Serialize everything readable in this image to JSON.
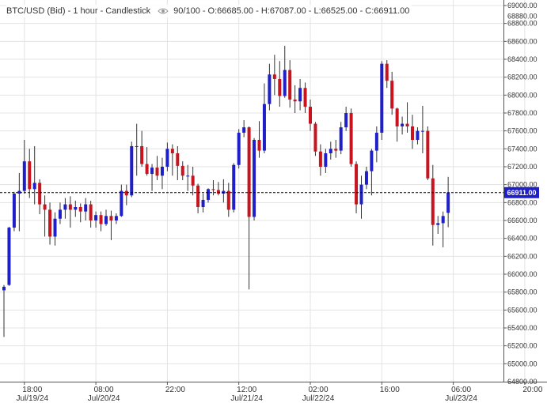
{
  "header": {
    "symbol_label": "BTC/USD (Bid) - 1 hour - Candlestick",
    "visible_icon": "eye-icon",
    "zoom": "90/100",
    "ohlc": "- O:66685.00 - H:67087.00 - L:66525.00 - C:66911.00"
  },
  "colors": {
    "up": "#1f1fc8",
    "down": "#c8141e",
    "grid": "#e3e3e3",
    "current_price_bg": "#1f1fc8"
  },
  "chart_data": {
    "type": "candlestick",
    "title": "BTC/USD (Bid) - 1 hour - Candlestick",
    "last_price": 66911.0,
    "last_price_label": "66911.00",
    "y_ticks": [
      65000,
      65200,
      65400,
      65600,
      65800,
      66000,
      66200,
      66400,
      66600,
      66800,
      67000,
      67200,
      67400,
      67600,
      67800,
      68000,
      68200,
      68400,
      68600,
      68800,
      69000
    ],
    "y_tick_labels": [
      "65000.00",
      "65200.00",
      "65400.00",
      "65600.00",
      "65800.00",
      "66000.00",
      "66200.00",
      "66400.00",
      "66600.00",
      "66800.00",
      "67000.00",
      "67200.00",
      "67400.00",
      "67600.00",
      "67800.00",
      "68000.00",
      "68200.00",
      "68400.00",
      "68600.00",
      "68800.00",
      "69000.00"
    ],
    "y_edge_labels": [
      "64800.00",
      "68880.00"
    ],
    "ylim": [
      64800,
      69000
    ],
    "x_tick_labels": [
      "18:00",
      "08:00",
      "22:00",
      "12:00",
      "02:00",
      "16:00",
      "06:00",
      "20:00"
    ],
    "x_tick_index": [
      4,
      18,
      32,
      46,
      60,
      74,
      88,
      102
    ],
    "x_date_labels": [
      {
        "label": "Jul/19/24",
        "index": 4
      },
      {
        "label": "Jul/20/24",
        "index": 18
      },
      {
        "label": "Jul/21/24",
        "index": 46
      },
      {
        "label": "Jul/22/24",
        "index": 60
      },
      {
        "label": "Jul/23/24",
        "index": 88
      }
    ],
    "candles": [
      {
        "o": 65820,
        "h": 65880,
        "l": 65300,
        "c": 65860
      },
      {
        "o": 65880,
        "h": 66530,
        "l": 65870,
        "c": 66520
      },
      {
        "o": 66520,
        "h": 66920,
        "l": 66480,
        "c": 66900
      },
      {
        "o": 66900,
        "h": 67130,
        "l": 66480,
        "c": 66930
      },
      {
        "o": 66930,
        "h": 67500,
        "l": 66900,
        "c": 67260
      },
      {
        "o": 67260,
        "h": 67400,
        "l": 66850,
        "c": 66950
      },
      {
        "o": 66950,
        "h": 67430,
        "l": 66780,
        "c": 67020
      },
      {
        "o": 67020,
        "h": 67060,
        "l": 66670,
        "c": 66780
      },
      {
        "o": 66780,
        "h": 66880,
        "l": 66420,
        "c": 66720
      },
      {
        "o": 66720,
        "h": 66800,
        "l": 66330,
        "c": 66420
      },
      {
        "o": 66420,
        "h": 66690,
        "l": 66320,
        "c": 66620
      },
      {
        "o": 66620,
        "h": 66800,
        "l": 66560,
        "c": 66720
      },
      {
        "o": 66720,
        "h": 66850,
        "l": 66620,
        "c": 66780
      },
      {
        "o": 66780,
        "h": 66870,
        "l": 66520,
        "c": 66720
      },
      {
        "o": 66720,
        "h": 66820,
        "l": 66640,
        "c": 66750
      },
      {
        "o": 66750,
        "h": 66790,
        "l": 66580,
        "c": 66700
      },
      {
        "o": 66700,
        "h": 66850,
        "l": 66600,
        "c": 66780
      },
      {
        "o": 66780,
        "h": 66820,
        "l": 66520,
        "c": 66600
      },
      {
        "o": 66600,
        "h": 66700,
        "l": 66520,
        "c": 66660
      },
      {
        "o": 66660,
        "h": 66700,
        "l": 66480,
        "c": 66560
      },
      {
        "o": 66560,
        "h": 66720,
        "l": 66540,
        "c": 66650
      },
      {
        "o": 66650,
        "h": 66710,
        "l": 66380,
        "c": 66600
      },
      {
        "o": 66600,
        "h": 66680,
        "l": 66560,
        "c": 66650
      },
      {
        "o": 66650,
        "h": 67000,
        "l": 66640,
        "c": 66930
      },
      {
        "o": 66930,
        "h": 67000,
        "l": 66770,
        "c": 66880
      },
      {
        "o": 66880,
        "h": 67480,
        "l": 66860,
        "c": 67430
      },
      {
        "o": 67430,
        "h": 67680,
        "l": 67100,
        "c": 67430
      },
      {
        "o": 67430,
        "h": 67600,
        "l": 67200,
        "c": 67230
      },
      {
        "o": 67230,
        "h": 67420,
        "l": 67100,
        "c": 67120
      },
      {
        "o": 67120,
        "h": 67230,
        "l": 66930,
        "c": 67190
      },
      {
        "o": 67190,
        "h": 67320,
        "l": 67050,
        "c": 67100
      },
      {
        "o": 67100,
        "h": 67300,
        "l": 66950,
        "c": 67200
      },
      {
        "o": 67200,
        "h": 67470,
        "l": 67150,
        "c": 67400
      },
      {
        "o": 67400,
        "h": 67450,
        "l": 67100,
        "c": 67350
      },
      {
        "o": 67350,
        "h": 67430,
        "l": 67050,
        "c": 67210
      },
      {
        "o": 67210,
        "h": 67260,
        "l": 67050,
        "c": 67100
      },
      {
        "o": 67100,
        "h": 67220,
        "l": 66930,
        "c": 67100
      },
      {
        "o": 67100,
        "h": 67200,
        "l": 66880,
        "c": 66990
      },
      {
        "o": 66990,
        "h": 67010,
        "l": 66680,
        "c": 66750
      },
      {
        "o": 66750,
        "h": 66900,
        "l": 66690,
        "c": 66830
      },
      {
        "o": 66830,
        "h": 66960,
        "l": 66800,
        "c": 66950
      },
      {
        "o": 66950,
        "h": 67050,
        "l": 66880,
        "c": 66940
      },
      {
        "o": 66940,
        "h": 67030,
        "l": 66880,
        "c": 66900
      },
      {
        "o": 66900,
        "h": 67060,
        "l": 66800,
        "c": 66930
      },
      {
        "o": 66930,
        "h": 67020,
        "l": 66640,
        "c": 66720
      },
      {
        "o": 66720,
        "h": 67240,
        "l": 66690,
        "c": 67220
      },
      {
        "o": 67220,
        "h": 67620,
        "l": 67180,
        "c": 67580
      },
      {
        "o": 67580,
        "h": 67720,
        "l": 67530,
        "c": 67640
      },
      {
        "o": 67640,
        "h": 67650,
        "l": 65830,
        "c": 66640
      },
      {
        "o": 66640,
        "h": 67520,
        "l": 66600,
        "c": 67500
      },
      {
        "o": 67500,
        "h": 67710,
        "l": 67300,
        "c": 67380
      },
      {
        "o": 67380,
        "h": 68130,
        "l": 67350,
        "c": 67900
      },
      {
        "o": 67900,
        "h": 68350,
        "l": 67830,
        "c": 68230
      },
      {
        "o": 68230,
        "h": 68450,
        "l": 68000,
        "c": 68180
      },
      {
        "o": 68180,
        "h": 68380,
        "l": 67870,
        "c": 67990
      },
      {
        "o": 67990,
        "h": 68550,
        "l": 67970,
        "c": 68280
      },
      {
        "o": 68280,
        "h": 68390,
        "l": 67860,
        "c": 67950
      },
      {
        "o": 67950,
        "h": 68110,
        "l": 67800,
        "c": 67930
      },
      {
        "o": 67930,
        "h": 68180,
        "l": 67830,
        "c": 68080
      },
      {
        "o": 68080,
        "h": 68140,
        "l": 67800,
        "c": 67870
      },
      {
        "o": 67870,
        "h": 67950,
        "l": 67600,
        "c": 67680
      },
      {
        "o": 67680,
        "h": 67700,
        "l": 67320,
        "c": 67370
      },
      {
        "o": 67370,
        "h": 67450,
        "l": 67100,
        "c": 67200
      },
      {
        "o": 67200,
        "h": 67400,
        "l": 67130,
        "c": 67350
      },
      {
        "o": 67350,
        "h": 67480,
        "l": 67280,
        "c": 67400
      },
      {
        "o": 67400,
        "h": 67500,
        "l": 67300,
        "c": 67380
      },
      {
        "o": 67380,
        "h": 67700,
        "l": 67340,
        "c": 67640
      },
      {
        "o": 67640,
        "h": 67870,
        "l": 67600,
        "c": 67800
      },
      {
        "o": 67800,
        "h": 67850,
        "l": 67200,
        "c": 67230
      },
      {
        "o": 67230,
        "h": 67260,
        "l": 66680,
        "c": 66780
      },
      {
        "o": 66780,
        "h": 67100,
        "l": 66620,
        "c": 67000
      },
      {
        "o": 67000,
        "h": 67200,
        "l": 66950,
        "c": 67150
      },
      {
        "o": 67150,
        "h": 67400,
        "l": 66880,
        "c": 67380
      },
      {
        "o": 67380,
        "h": 67650,
        "l": 67250,
        "c": 67580
      },
      {
        "o": 67580,
        "h": 68380,
        "l": 67500,
        "c": 68350
      },
      {
        "o": 68350,
        "h": 68390,
        "l": 68080,
        "c": 68160
      },
      {
        "o": 68160,
        "h": 68260,
        "l": 67780,
        "c": 67850
      },
      {
        "o": 67850,
        "h": 67860,
        "l": 67480,
        "c": 67650
      },
      {
        "o": 67650,
        "h": 67760,
        "l": 67560,
        "c": 67680
      },
      {
        "o": 67680,
        "h": 67920,
        "l": 67580,
        "c": 67650
      },
      {
        "o": 67650,
        "h": 67780,
        "l": 67400,
        "c": 67500
      },
      {
        "o": 67500,
        "h": 67640,
        "l": 67450,
        "c": 67600
      },
      {
        "o": 67600,
        "h": 67880,
        "l": 67350,
        "c": 67600
      },
      {
        "o": 67600,
        "h": 67650,
        "l": 67050,
        "c": 67070
      },
      {
        "o": 67070,
        "h": 67220,
        "l": 66320,
        "c": 66550
      },
      {
        "o": 66550,
        "h": 66650,
        "l": 66450,
        "c": 66570
      },
      {
        "o": 66570,
        "h": 66700,
        "l": 66300,
        "c": 66650
      },
      {
        "o": 66685,
        "h": 67087,
        "l": 66525,
        "c": 66911
      }
    ]
  }
}
